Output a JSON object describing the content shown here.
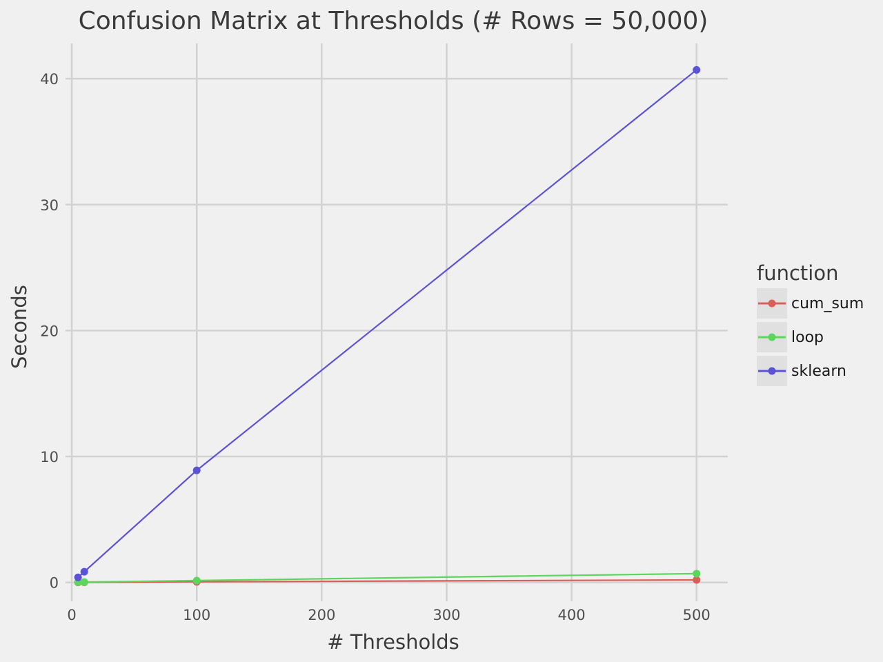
{
  "chart_data": {
    "type": "line",
    "title": "Confusion Matrix at Thresholds (# Rows = 50,000)",
    "xlabel": "# Thresholds",
    "ylabel": "Seconds",
    "xlim": [
      -5,
      525
    ],
    "ylim": [
      -1.5,
      42.8
    ],
    "xticks": [
      0,
      100,
      200,
      300,
      400,
      500
    ],
    "yticks": [
      0,
      10,
      20,
      30,
      40
    ],
    "xtick_labels": [
      "0",
      "100",
      "200",
      "300",
      "400",
      "500"
    ],
    "ytick_labels": [
      "0",
      "10",
      "20",
      "30",
      "40"
    ],
    "grid": true,
    "legend": {
      "title": "function",
      "position": "right"
    },
    "series": [
      {
        "name": "cum_sum",
        "color": "#d95f5a",
        "x": [
          5,
          10,
          100,
          500
        ],
        "y": [
          0.0,
          0.01,
          0.05,
          0.2
        ]
      },
      {
        "name": "loop",
        "color": "#5cd65c",
        "x": [
          5,
          10,
          100,
          500
        ],
        "y": [
          0.02,
          0.03,
          0.15,
          0.7
        ]
      },
      {
        "name": "sklearn",
        "color": "#5b52d6",
        "x": [
          5,
          10,
          100,
          500
        ],
        "y": [
          0.4,
          0.85,
          8.9,
          40.7
        ]
      }
    ]
  }
}
